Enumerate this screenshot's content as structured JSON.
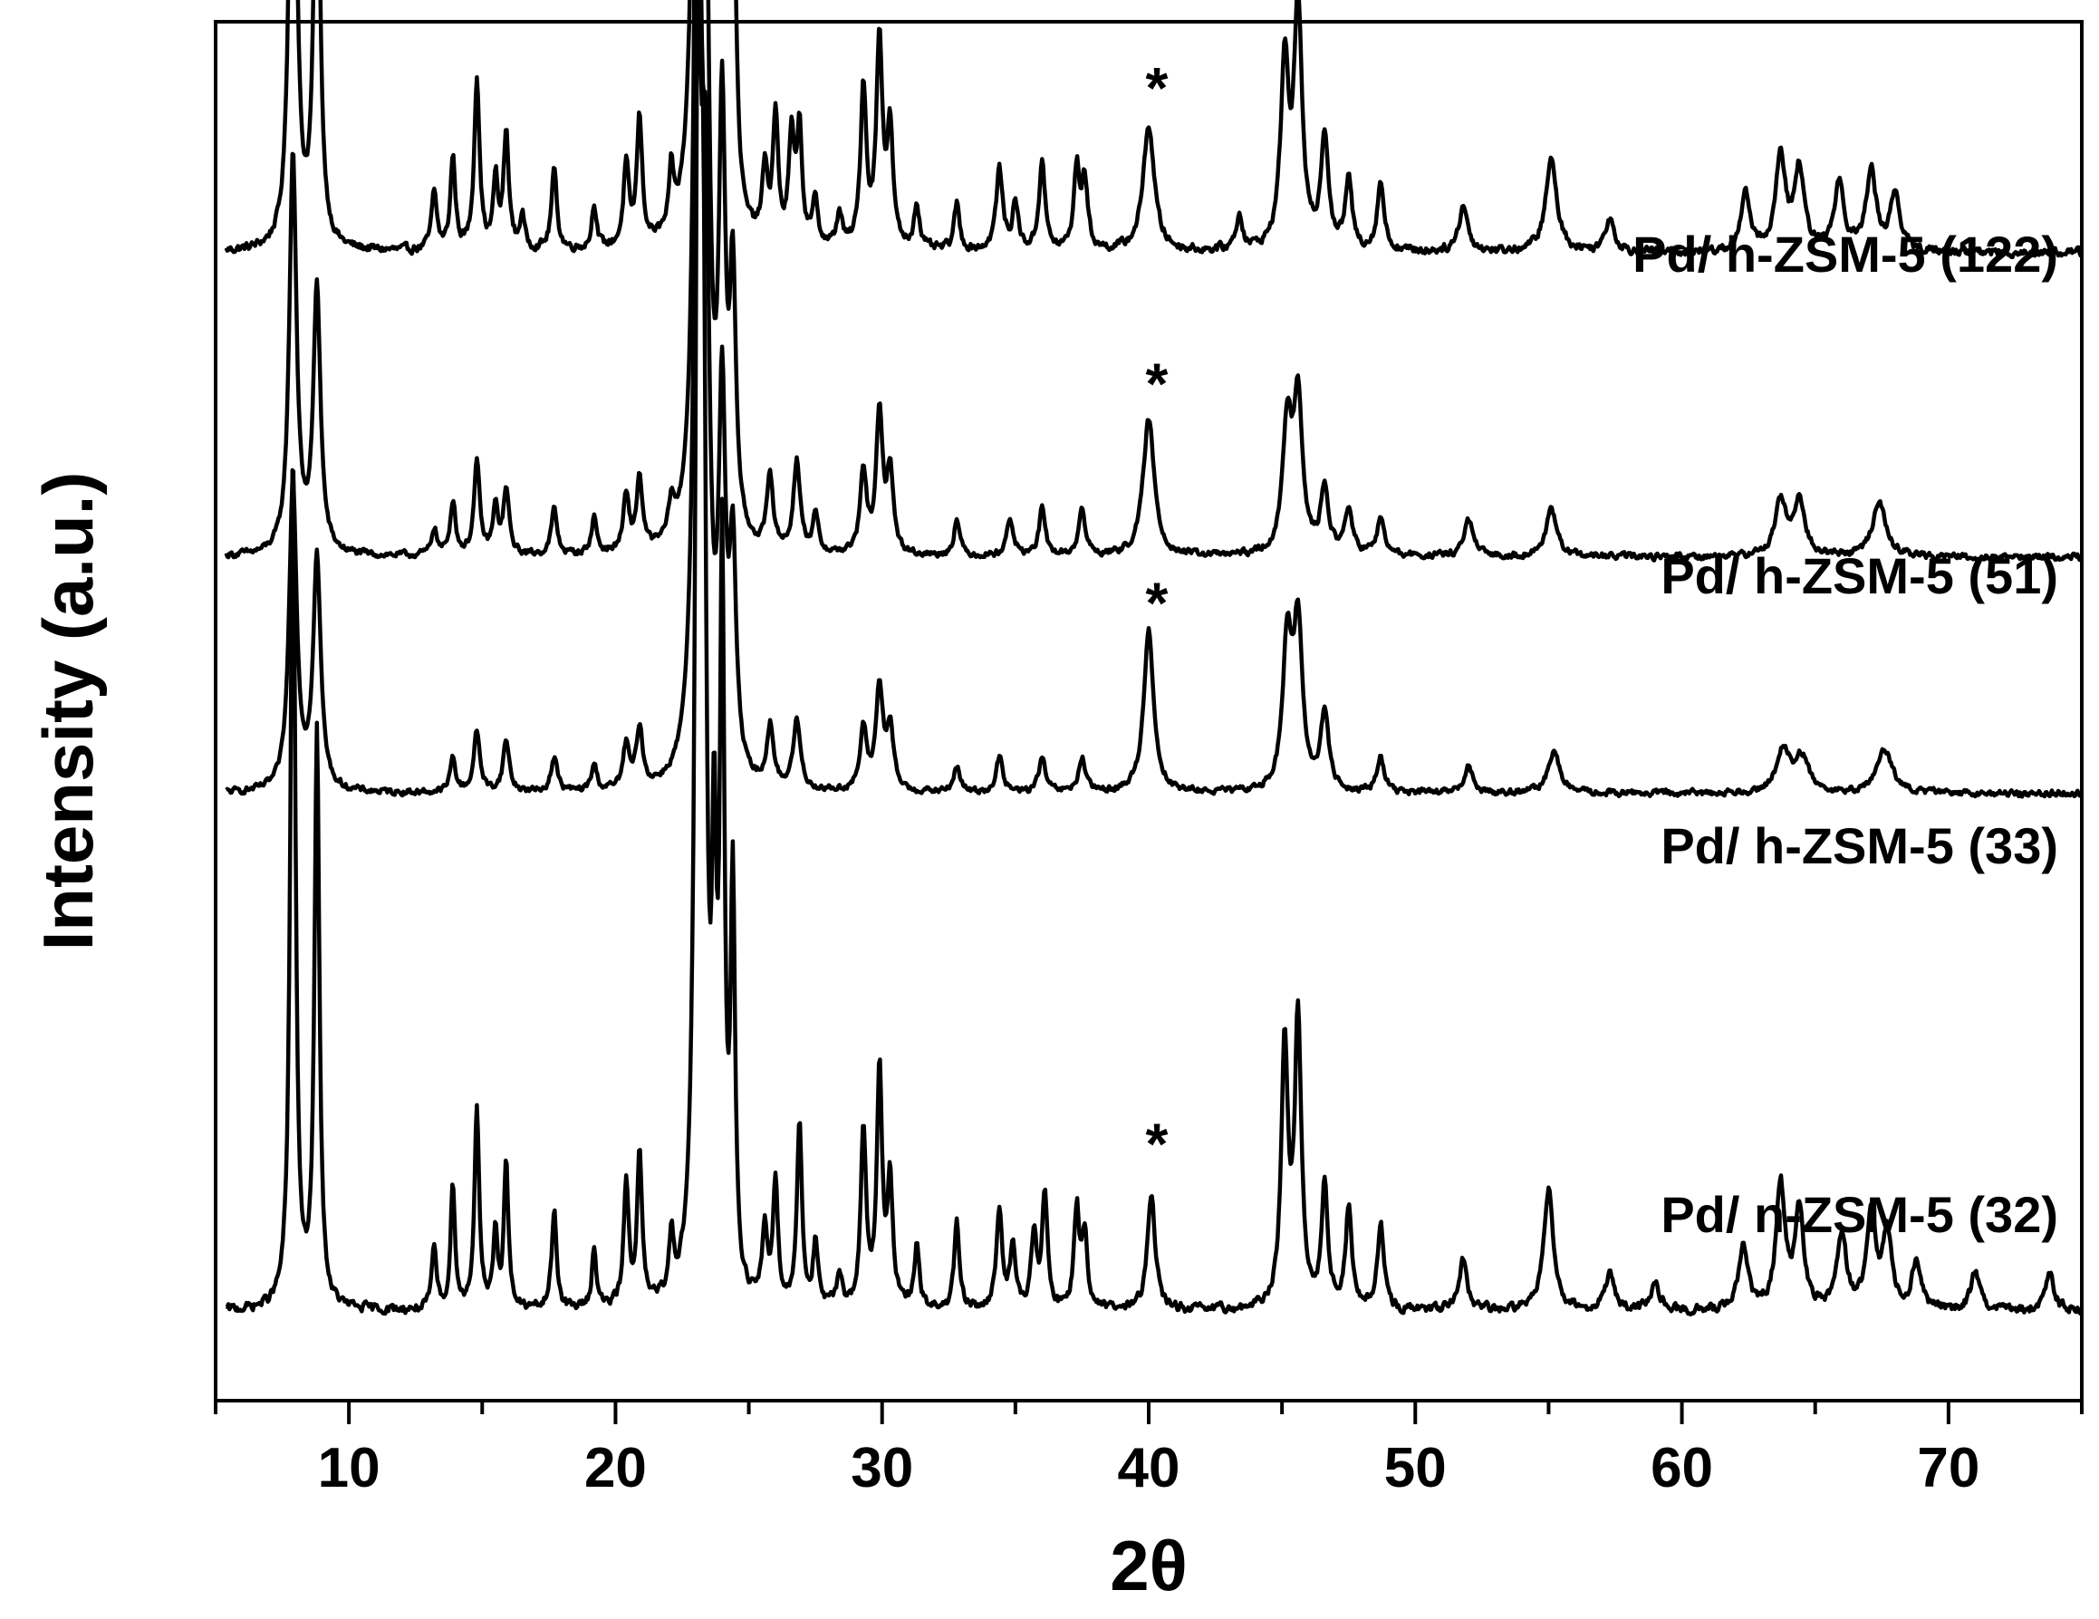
{
  "chart_data": {
    "type": "line",
    "xlabel": "2θ",
    "ylabel": "Intensity (a.u.)",
    "xlim": [
      5,
      75
    ],
    "x_ticks": [
      10,
      20,
      30,
      40,
      50,
      60,
      70
    ],
    "x_tick_labels": [
      "10",
      "20",
      "30",
      "40",
      "50",
      "60",
      "70"
    ],
    "y_ticks_shown": false,
    "grid": false,
    "legend": "labels placed at right above each trace",
    "annotation_marker": "*",
    "annotation_x": 40.1,
    "series": [
      {
        "name": "Pd/ h-ZSM-5 (122)",
        "offset": 0.805,
        "scale": 0.88,
        "baseline": 0.036,
        "noise": 0.006,
        "peaks": [
          [
            7.9,
            0.58,
            0.14
          ],
          [
            8.8,
            0.39,
            0.14
          ],
          [
            13.2,
            0.05,
            0.12
          ],
          [
            13.9,
            0.08,
            0.11
          ],
          [
            14.8,
            0.15,
            0.12
          ],
          [
            15.5,
            0.06,
            0.1
          ],
          [
            15.9,
            0.1,
            0.12
          ],
          [
            16.5,
            0.03,
            0.1
          ],
          [
            17.7,
            0.07,
            0.12
          ],
          [
            19.2,
            0.04,
            0.1
          ],
          [
            20.4,
            0.07,
            0.12
          ],
          [
            20.9,
            0.11,
            0.12
          ],
          [
            22.1,
            0.05,
            0.1
          ],
          [
            23.1,
            1.0,
            0.14
          ],
          [
            23.3,
            0.6,
            0.14
          ],
          [
            23.7,
            0.3,
            0.12
          ],
          [
            24.0,
            0.54,
            0.12
          ],
          [
            24.4,
            0.35,
            0.12
          ],
          [
            25.6,
            0.06,
            0.12
          ],
          [
            26.0,
            0.11,
            0.12
          ],
          [
            26.6,
            0.09,
            0.12
          ],
          [
            26.9,
            0.1,
            0.12
          ],
          [
            27.5,
            0.04,
            0.12
          ],
          [
            28.4,
            0.03,
            0.12
          ],
          [
            29.3,
            0.14,
            0.13
          ],
          [
            29.9,
            0.18,
            0.14
          ],
          [
            30.3,
            0.1,
            0.13
          ],
          [
            31.3,
            0.04,
            0.12
          ],
          [
            32.8,
            0.04,
            0.12
          ],
          [
            34.4,
            0.07,
            0.15
          ],
          [
            35.0,
            0.04,
            0.13
          ],
          [
            36.0,
            0.08,
            0.13
          ],
          [
            37.3,
            0.07,
            0.13
          ],
          [
            37.6,
            0.06,
            0.13
          ],
          [
            40.0,
            0.11,
            0.25
          ],
          [
            43.4,
            0.03,
            0.15
          ],
          [
            45.1,
            0.16,
            0.18
          ],
          [
            45.6,
            0.21,
            0.18
          ],
          [
            46.6,
            0.1,
            0.17
          ],
          [
            47.5,
            0.06,
            0.15
          ],
          [
            48.7,
            0.06,
            0.15
          ],
          [
            51.8,
            0.04,
            0.2
          ],
          [
            55.1,
            0.08,
            0.25
          ],
          [
            57.3,
            0.03,
            0.2
          ],
          [
            62.4,
            0.05,
            0.2
          ],
          [
            63.7,
            0.08,
            0.22
          ],
          [
            64.4,
            0.07,
            0.22
          ],
          [
            65.9,
            0.06,
            0.22
          ],
          [
            67.1,
            0.07,
            0.22
          ],
          [
            68.0,
            0.05,
            0.22
          ]
        ]
      },
      {
        "name": "Pd/ h-ZSM-5 (51)",
        "offset": 0.575,
        "scale": 0.7,
        "baseline": 0.04,
        "noise": 0.006,
        "peaks": [
          [
            7.9,
            0.44,
            0.16
          ],
          [
            8.8,
            0.29,
            0.16
          ],
          [
            13.2,
            0.03,
            0.12
          ],
          [
            13.9,
            0.06,
            0.12
          ],
          [
            14.8,
            0.1,
            0.13
          ],
          [
            15.5,
            0.05,
            0.12
          ],
          [
            15.9,
            0.07,
            0.13
          ],
          [
            17.7,
            0.05,
            0.13
          ],
          [
            19.2,
            0.04,
            0.12
          ],
          [
            20.4,
            0.06,
            0.13
          ],
          [
            20.9,
            0.08,
            0.13
          ],
          [
            22.1,
            0.04,
            0.12
          ],
          [
            23.1,
            1.0,
            0.16
          ],
          [
            23.4,
            0.55,
            0.15
          ],
          [
            24.0,
            0.45,
            0.14
          ],
          [
            24.4,
            0.28,
            0.14
          ],
          [
            25.8,
            0.08,
            0.14
          ],
          [
            26.8,
            0.1,
            0.15
          ],
          [
            27.5,
            0.04,
            0.13
          ],
          [
            29.3,
            0.09,
            0.14
          ],
          [
            29.9,
            0.15,
            0.15
          ],
          [
            30.3,
            0.09,
            0.14
          ],
          [
            32.8,
            0.04,
            0.13
          ],
          [
            34.8,
            0.04,
            0.15
          ],
          [
            36.0,
            0.05,
            0.14
          ],
          [
            37.5,
            0.05,
            0.15
          ],
          [
            40.0,
            0.15,
            0.25
          ],
          [
            45.2,
            0.14,
            0.2
          ],
          [
            45.6,
            0.17,
            0.2
          ],
          [
            46.6,
            0.07,
            0.18
          ],
          [
            47.5,
            0.05,
            0.17
          ],
          [
            48.7,
            0.04,
            0.17
          ],
          [
            52.0,
            0.04,
            0.2
          ],
          [
            55.1,
            0.05,
            0.25
          ],
          [
            63.7,
            0.06,
            0.25
          ],
          [
            64.4,
            0.06,
            0.25
          ],
          [
            67.4,
            0.06,
            0.3
          ]
        ]
      },
      {
        "name": "Pd/ h-ZSM-5 (33)",
        "offset": 0.395,
        "scale": 0.66,
        "baseline": 0.04,
        "noise": 0.006,
        "peaks": [
          [
            7.9,
            0.36,
            0.17
          ],
          [
            8.8,
            0.27,
            0.17
          ],
          [
            13.9,
            0.04,
            0.12
          ],
          [
            14.8,
            0.07,
            0.14
          ],
          [
            15.9,
            0.06,
            0.14
          ],
          [
            17.7,
            0.04,
            0.14
          ],
          [
            19.2,
            0.03,
            0.12
          ],
          [
            20.4,
            0.05,
            0.14
          ],
          [
            20.9,
            0.07,
            0.14
          ],
          [
            23.1,
            1.0,
            0.17
          ],
          [
            23.4,
            0.52,
            0.16
          ],
          [
            24.0,
            0.42,
            0.15
          ],
          [
            24.4,
            0.25,
            0.15
          ],
          [
            25.8,
            0.07,
            0.15
          ],
          [
            26.8,
            0.08,
            0.16
          ],
          [
            29.3,
            0.07,
            0.15
          ],
          [
            29.9,
            0.12,
            0.16
          ],
          [
            30.3,
            0.07,
            0.15
          ],
          [
            32.8,
            0.03,
            0.14
          ],
          [
            34.4,
            0.04,
            0.15
          ],
          [
            36.0,
            0.04,
            0.15
          ],
          [
            37.5,
            0.04,
            0.15
          ],
          [
            40.0,
            0.19,
            0.22
          ],
          [
            45.2,
            0.17,
            0.2
          ],
          [
            45.6,
            0.19,
            0.2
          ],
          [
            46.6,
            0.09,
            0.18
          ],
          [
            48.7,
            0.04,
            0.17
          ],
          [
            52.0,
            0.03,
            0.2
          ],
          [
            55.2,
            0.05,
            0.25
          ],
          [
            63.8,
            0.05,
            0.3
          ],
          [
            64.5,
            0.04,
            0.3
          ],
          [
            67.6,
            0.05,
            0.35
          ]
        ]
      },
      {
        "name": "Pd/ n-ZSM-5 (32)",
        "offset": 0.0,
        "scale": 0.955,
        "baseline": 0.025,
        "noise": 0.006,
        "peaks": [
          [
            7.9,
            0.69,
            0.11
          ],
          [
            8.8,
            0.46,
            0.11
          ],
          [
            13.2,
            0.05,
            0.1
          ],
          [
            13.9,
            0.1,
            0.1
          ],
          [
            14.8,
            0.16,
            0.11
          ],
          [
            15.5,
            0.06,
            0.09
          ],
          [
            15.9,
            0.12,
            0.1
          ],
          [
            17.7,
            0.08,
            0.11
          ],
          [
            19.2,
            0.05,
            0.1
          ],
          [
            20.4,
            0.1,
            0.11
          ],
          [
            20.9,
            0.12,
            0.11
          ],
          [
            22.1,
            0.05,
            0.1
          ],
          [
            23.1,
            1.0,
            0.12
          ],
          [
            23.3,
            0.65,
            0.12
          ],
          [
            23.7,
            0.3,
            0.1
          ],
          [
            24.0,
            0.57,
            0.1
          ],
          [
            24.4,
            0.32,
            0.1
          ],
          [
            25.6,
            0.06,
            0.11
          ],
          [
            26.0,
            0.1,
            0.11
          ],
          [
            26.9,
            0.15,
            0.11
          ],
          [
            27.5,
            0.05,
            0.11
          ],
          [
            28.4,
            0.03,
            0.11
          ],
          [
            29.3,
            0.14,
            0.12
          ],
          [
            29.9,
            0.19,
            0.12
          ],
          [
            30.3,
            0.1,
            0.12
          ],
          [
            31.3,
            0.05,
            0.11
          ],
          [
            32.8,
            0.07,
            0.11
          ],
          [
            34.4,
            0.08,
            0.13
          ],
          [
            34.9,
            0.05,
            0.12
          ],
          [
            35.7,
            0.06,
            0.12
          ],
          [
            36.1,
            0.09,
            0.12
          ],
          [
            37.3,
            0.08,
            0.12
          ],
          [
            37.6,
            0.06,
            0.12
          ],
          [
            40.1,
            0.09,
            0.18
          ],
          [
            45.1,
            0.21,
            0.15
          ],
          [
            45.6,
            0.23,
            0.15
          ],
          [
            46.6,
            0.1,
            0.14
          ],
          [
            47.5,
            0.08,
            0.14
          ],
          [
            48.7,
            0.07,
            0.14
          ],
          [
            51.8,
            0.04,
            0.18
          ],
          [
            55.0,
            0.1,
            0.22
          ],
          [
            57.3,
            0.03,
            0.2
          ],
          [
            59.0,
            0.02,
            0.2
          ],
          [
            62.3,
            0.05,
            0.2
          ],
          [
            63.7,
            0.1,
            0.2
          ],
          [
            64.4,
            0.08,
            0.2
          ],
          [
            66.0,
            0.06,
            0.2
          ],
          [
            67.1,
            0.08,
            0.2
          ],
          [
            67.7,
            0.06,
            0.2
          ],
          [
            68.8,
            0.04,
            0.2
          ],
          [
            71.0,
            0.03,
            0.2
          ],
          [
            73.8,
            0.03,
            0.2
          ]
        ]
      }
    ]
  }
}
